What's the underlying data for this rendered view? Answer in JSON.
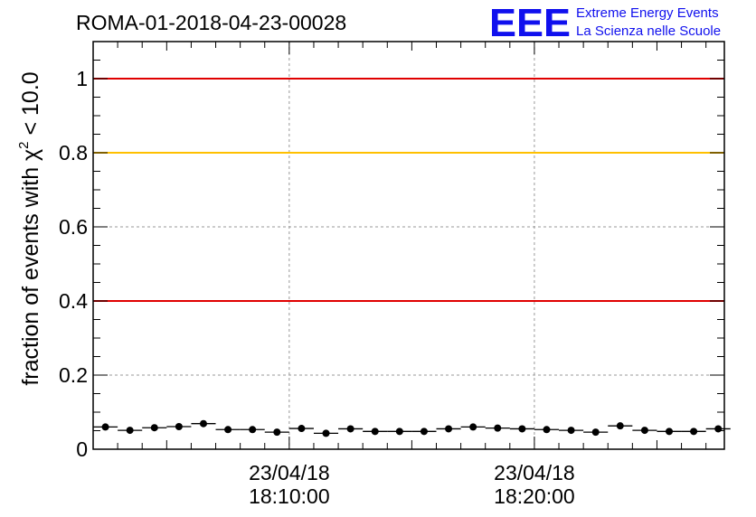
{
  "chart_data": {
    "type": "scatter",
    "title": "ROMA-01-2018-04-23-00028",
    "ylabel_prefix": "fraction of events with ",
    "ylabel_symbol": "χ",
    "ylabel_sup": "2",
    "ylabel_suffix": " < 10.0",
    "ylim": [
      0,
      1.1
    ],
    "y_ticks": [
      {
        "value": 0,
        "label": "0"
      },
      {
        "value": 0.2,
        "label": "0.2"
      },
      {
        "value": 0.4,
        "label": "0.4"
      },
      {
        "value": 0.6,
        "label": "0.6"
      },
      {
        "value": 0.8,
        "label": "0.8"
      },
      {
        "value": 1.0,
        "label": "1"
      }
    ],
    "xlim_minutes": [
      0,
      25.75
    ],
    "x_ticks": [
      {
        "minute": 8,
        "date": "23/04/18",
        "time": "18:10:00"
      },
      {
        "minute": 18,
        "date": "23/04/18",
        "time": "18:20:00"
      }
    ],
    "grid": true,
    "reference_lines": [
      {
        "value": 1.0,
        "color": "#e00000"
      },
      {
        "value": 0.8,
        "color": "#ffc000"
      },
      {
        "value": 0.4,
        "color": "#e00000"
      }
    ],
    "series": [
      {
        "marker_color": "#000000",
        "points": [
          0.06,
          0.051,
          0.058,
          0.061,
          0.069,
          0.053,
          0.053,
          0.046,
          0.056,
          0.043,
          0.055,
          0.048,
          0.048,
          0.048,
          0.055,
          0.06,
          0.057,
          0.055,
          0.053,
          0.051,
          0.046,
          0.063,
          0.051,
          0.048,
          0.048,
          0.055
        ]
      }
    ]
  },
  "logo": {
    "big_text": "EEE",
    "line1": "Extreme Energy Events",
    "line2": "La Scienza nelle Scuole",
    "color": "#1010ee"
  }
}
